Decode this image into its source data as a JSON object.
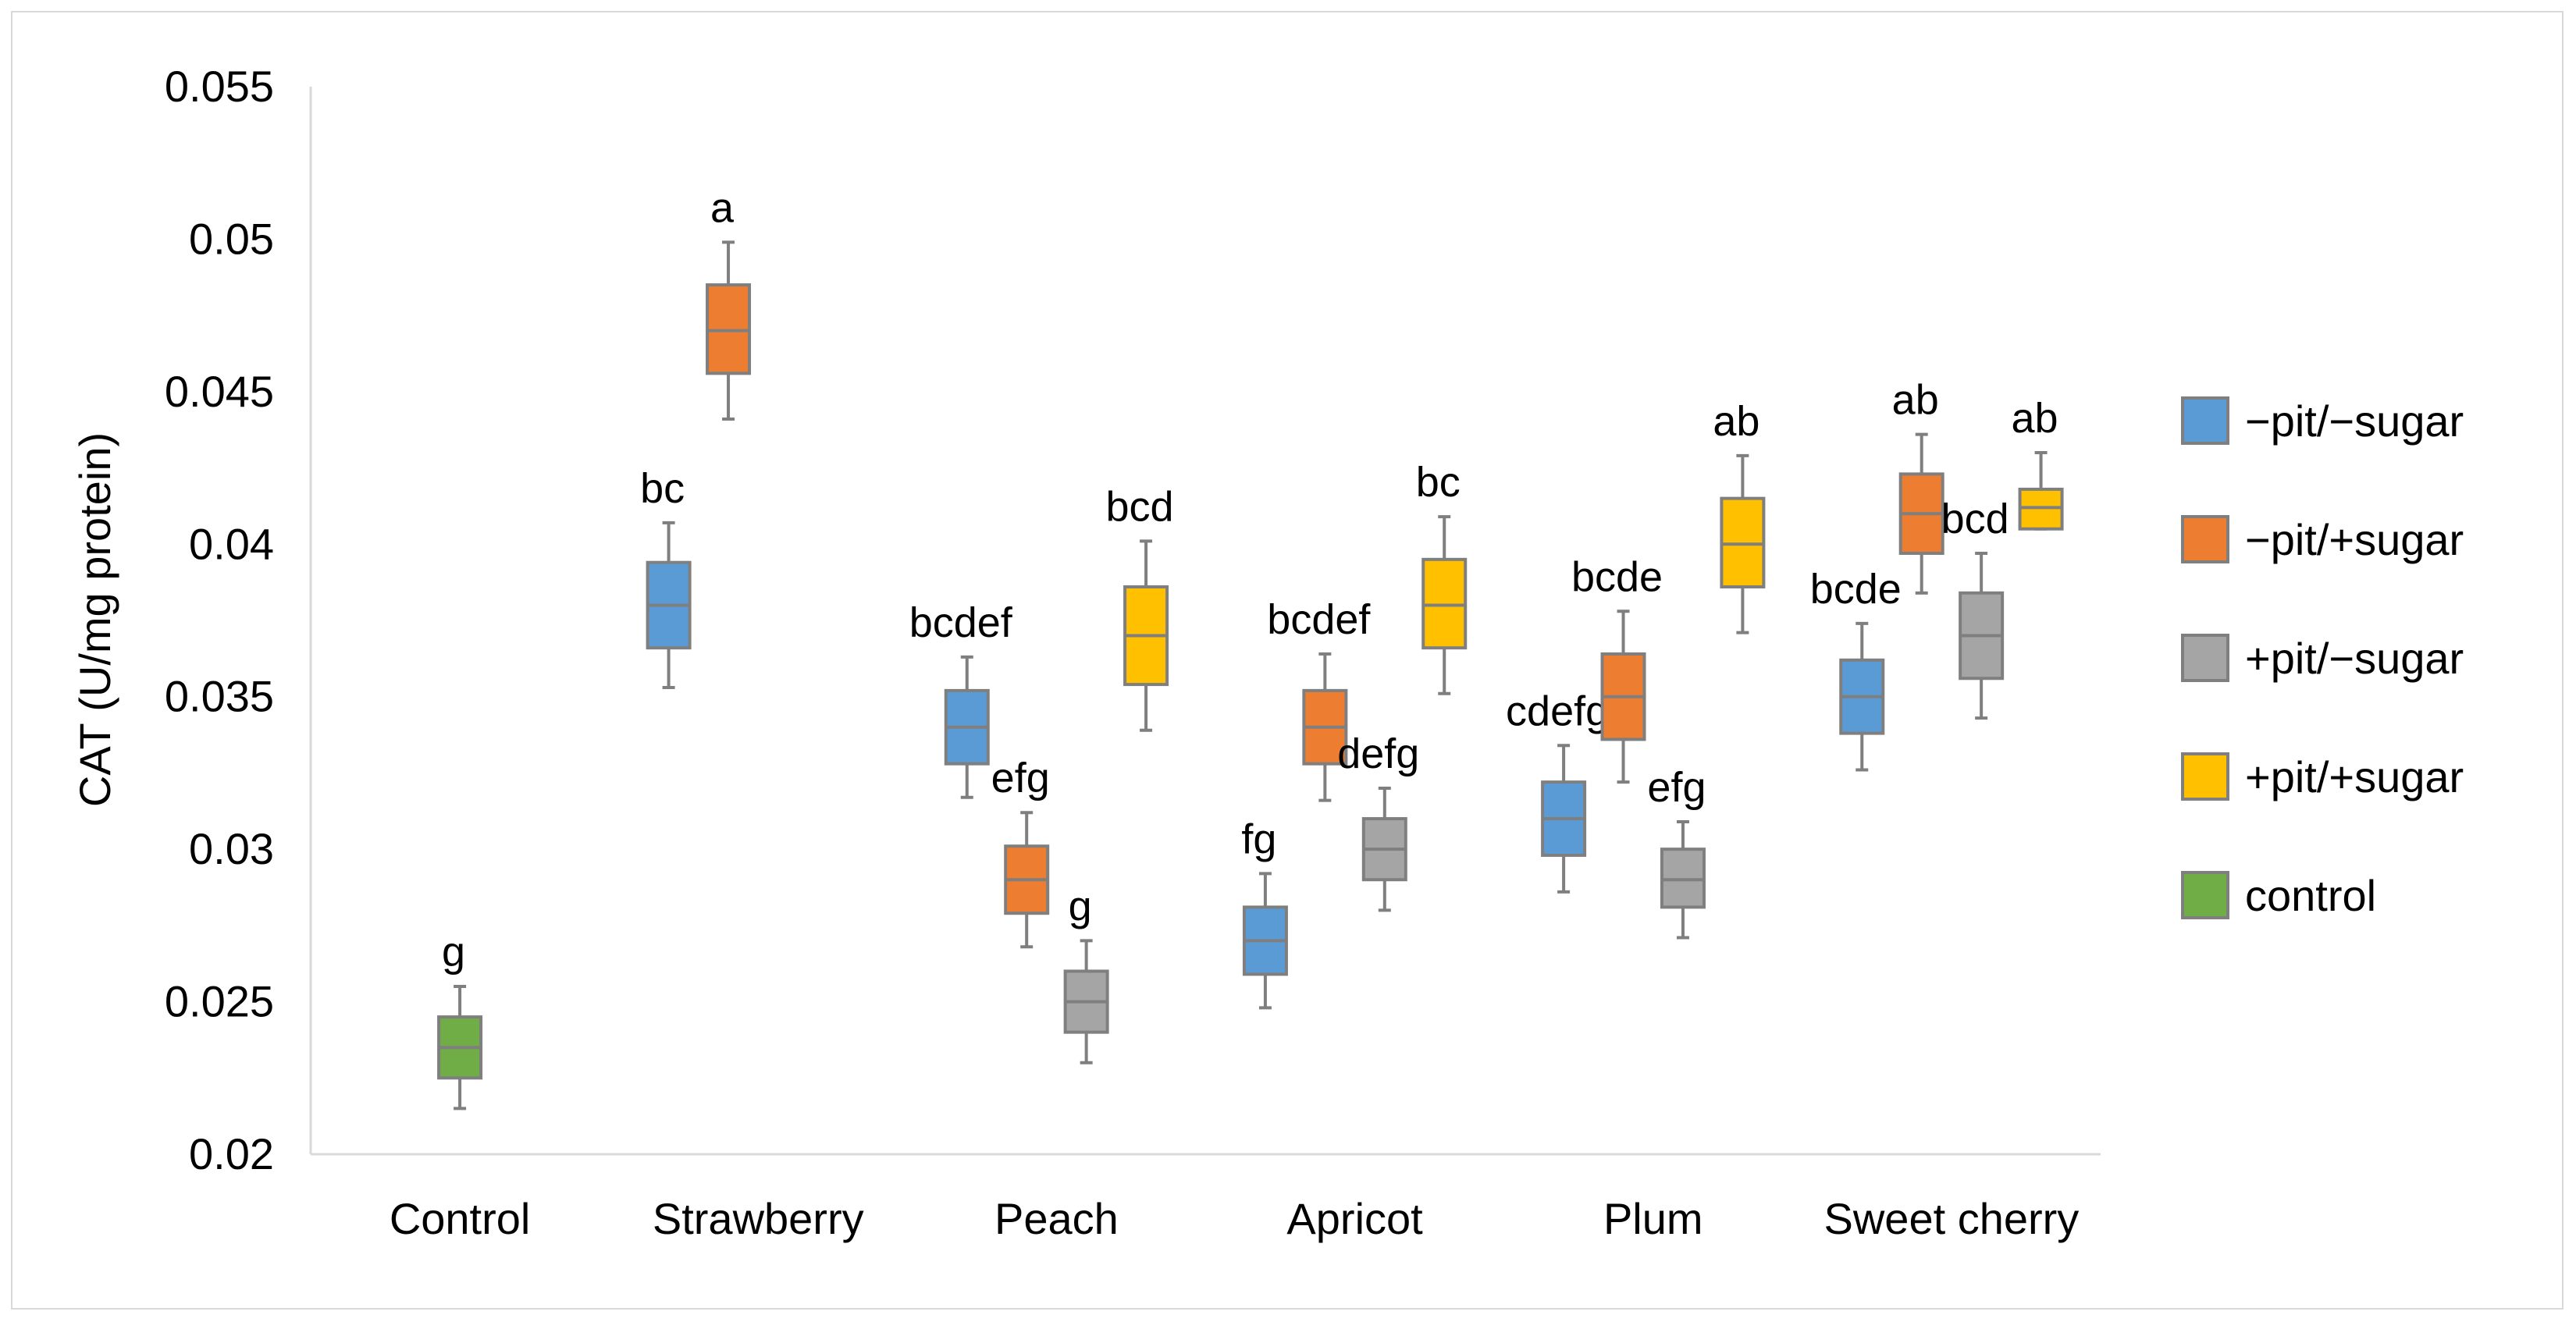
{
  "chart_data": {
    "type": "box",
    "title": "",
    "xlabel": "",
    "ylabel": "CAT (U/mg protein)",
    "ylim": [
      0.02,
      0.055
    ],
    "yticks": [
      "0.02",
      "0.025",
      "0.03",
      "0.035",
      "0.04",
      "0.045",
      "0.05",
      "0.055"
    ],
    "categories": [
      "Control",
      "Strawberry",
      "Peach",
      "Apricot",
      "Plum",
      "Sweet cherry"
    ],
    "legend_position": "right",
    "series": [
      {
        "name": "−pit/−sugar",
        "color": "#5b9bd5"
      },
      {
        "name": "−pit/+sugar",
        "color": "#ed7d31"
      },
      {
        "name": "+pit/−sugar",
        "color": "#a5a5a5"
      },
      {
        "name": "+pit/+sugar",
        "color": "#ffc000"
      },
      {
        "name": "control",
        "color": "#70ad47"
      }
    ],
    "boxes": [
      {
        "category": "Control",
        "series": "control",
        "min": 0.0215,
        "q1": 0.0225,
        "median": 0.0235,
        "q3": 0.0245,
        "max": 0.0255,
        "label": "g"
      },
      {
        "category": "Strawberry",
        "series": "−pit/−sugar",
        "min": 0.0353,
        "q1": 0.0366,
        "median": 0.038,
        "q3": 0.0394,
        "max": 0.0407,
        "label": "bc"
      },
      {
        "category": "Strawberry",
        "series": "−pit/+sugar",
        "min": 0.0441,
        "q1": 0.0456,
        "median": 0.047,
        "q3": 0.0485,
        "max": 0.0499,
        "label": "a"
      },
      {
        "category": "Peach",
        "series": "−pit/−sugar",
        "min": 0.0317,
        "q1": 0.0328,
        "median": 0.034,
        "q3": 0.0352,
        "max": 0.0363,
        "label": "bcdef"
      },
      {
        "category": "Peach",
        "series": "−pit/+sugar",
        "min": 0.0268,
        "q1": 0.0279,
        "median": 0.029,
        "q3": 0.0301,
        "max": 0.0312,
        "label": "efg"
      },
      {
        "category": "Peach",
        "series": "+pit/−sugar",
        "min": 0.023,
        "q1": 0.024,
        "median": 0.025,
        "q3": 0.026,
        "max": 0.027,
        "label": "g"
      },
      {
        "category": "Peach",
        "series": "+pit/+sugar",
        "min": 0.0339,
        "q1": 0.0354,
        "median": 0.037,
        "q3": 0.0386,
        "max": 0.0401,
        "label": "bcd"
      },
      {
        "category": "Apricot",
        "series": "−pit/−sugar",
        "min": 0.0248,
        "q1": 0.0259,
        "median": 0.027,
        "q3": 0.0281,
        "max": 0.0292,
        "label": "fg"
      },
      {
        "category": "Apricot",
        "series": "−pit/+sugar",
        "min": 0.0316,
        "q1": 0.0328,
        "median": 0.034,
        "q3": 0.0352,
        "max": 0.0364,
        "label": "bcdef"
      },
      {
        "category": "Apricot",
        "series": "+pit/−sugar",
        "min": 0.028,
        "q1": 0.029,
        "median": 0.03,
        "q3": 0.031,
        "max": 0.032,
        "label": "defg"
      },
      {
        "category": "Apricot",
        "series": "+pit/+sugar",
        "min": 0.0351,
        "q1": 0.0366,
        "median": 0.038,
        "q3": 0.0395,
        "max": 0.0409,
        "label": "bc"
      },
      {
        "category": "Plum",
        "series": "−pit/−sugar",
        "min": 0.0286,
        "q1": 0.0298,
        "median": 0.031,
        "q3": 0.0322,
        "max": 0.0334,
        "label": "cdefg"
      },
      {
        "category": "Plum",
        "series": "−pit/+sugar",
        "min": 0.0322,
        "q1": 0.0336,
        "median": 0.035,
        "q3": 0.0364,
        "max": 0.0378,
        "label": "bcde"
      },
      {
        "category": "Plum",
        "series": "+pit/−sugar",
        "min": 0.0271,
        "q1": 0.0281,
        "median": 0.029,
        "q3": 0.03,
        "max": 0.0309,
        "label": "efg"
      },
      {
        "category": "Plum",
        "series": "+pit/+sugar",
        "min": 0.0371,
        "q1": 0.0386,
        "median": 0.04,
        "q3": 0.0415,
        "max": 0.0429,
        "label": "ab"
      },
      {
        "category": "Sweet cherry",
        "series": "−pit/−sugar",
        "min": 0.0326,
        "q1": 0.0338,
        "median": 0.035,
        "q3": 0.0362,
        "max": 0.0374,
        "label": "bcde"
      },
      {
        "category": "Sweet cherry",
        "series": "−pit/+sugar",
        "min": 0.0384,
        "q1": 0.0397,
        "median": 0.041,
        "q3": 0.0423,
        "max": 0.0436,
        "label": "ab"
      },
      {
        "category": "Sweet cherry",
        "series": "+pit/−sugar",
        "min": 0.0343,
        "q1": 0.0356,
        "median": 0.037,
        "q3": 0.0384,
        "max": 0.0397,
        "label": "bcd"
      },
      {
        "category": "Sweet cherry",
        "series": "+pit/+sugar",
        "min": 0.0405,
        "q1": 0.0405,
        "median": 0.0412,
        "q3": 0.0418,
        "max": 0.043,
        "label": "ab"
      }
    ]
  }
}
